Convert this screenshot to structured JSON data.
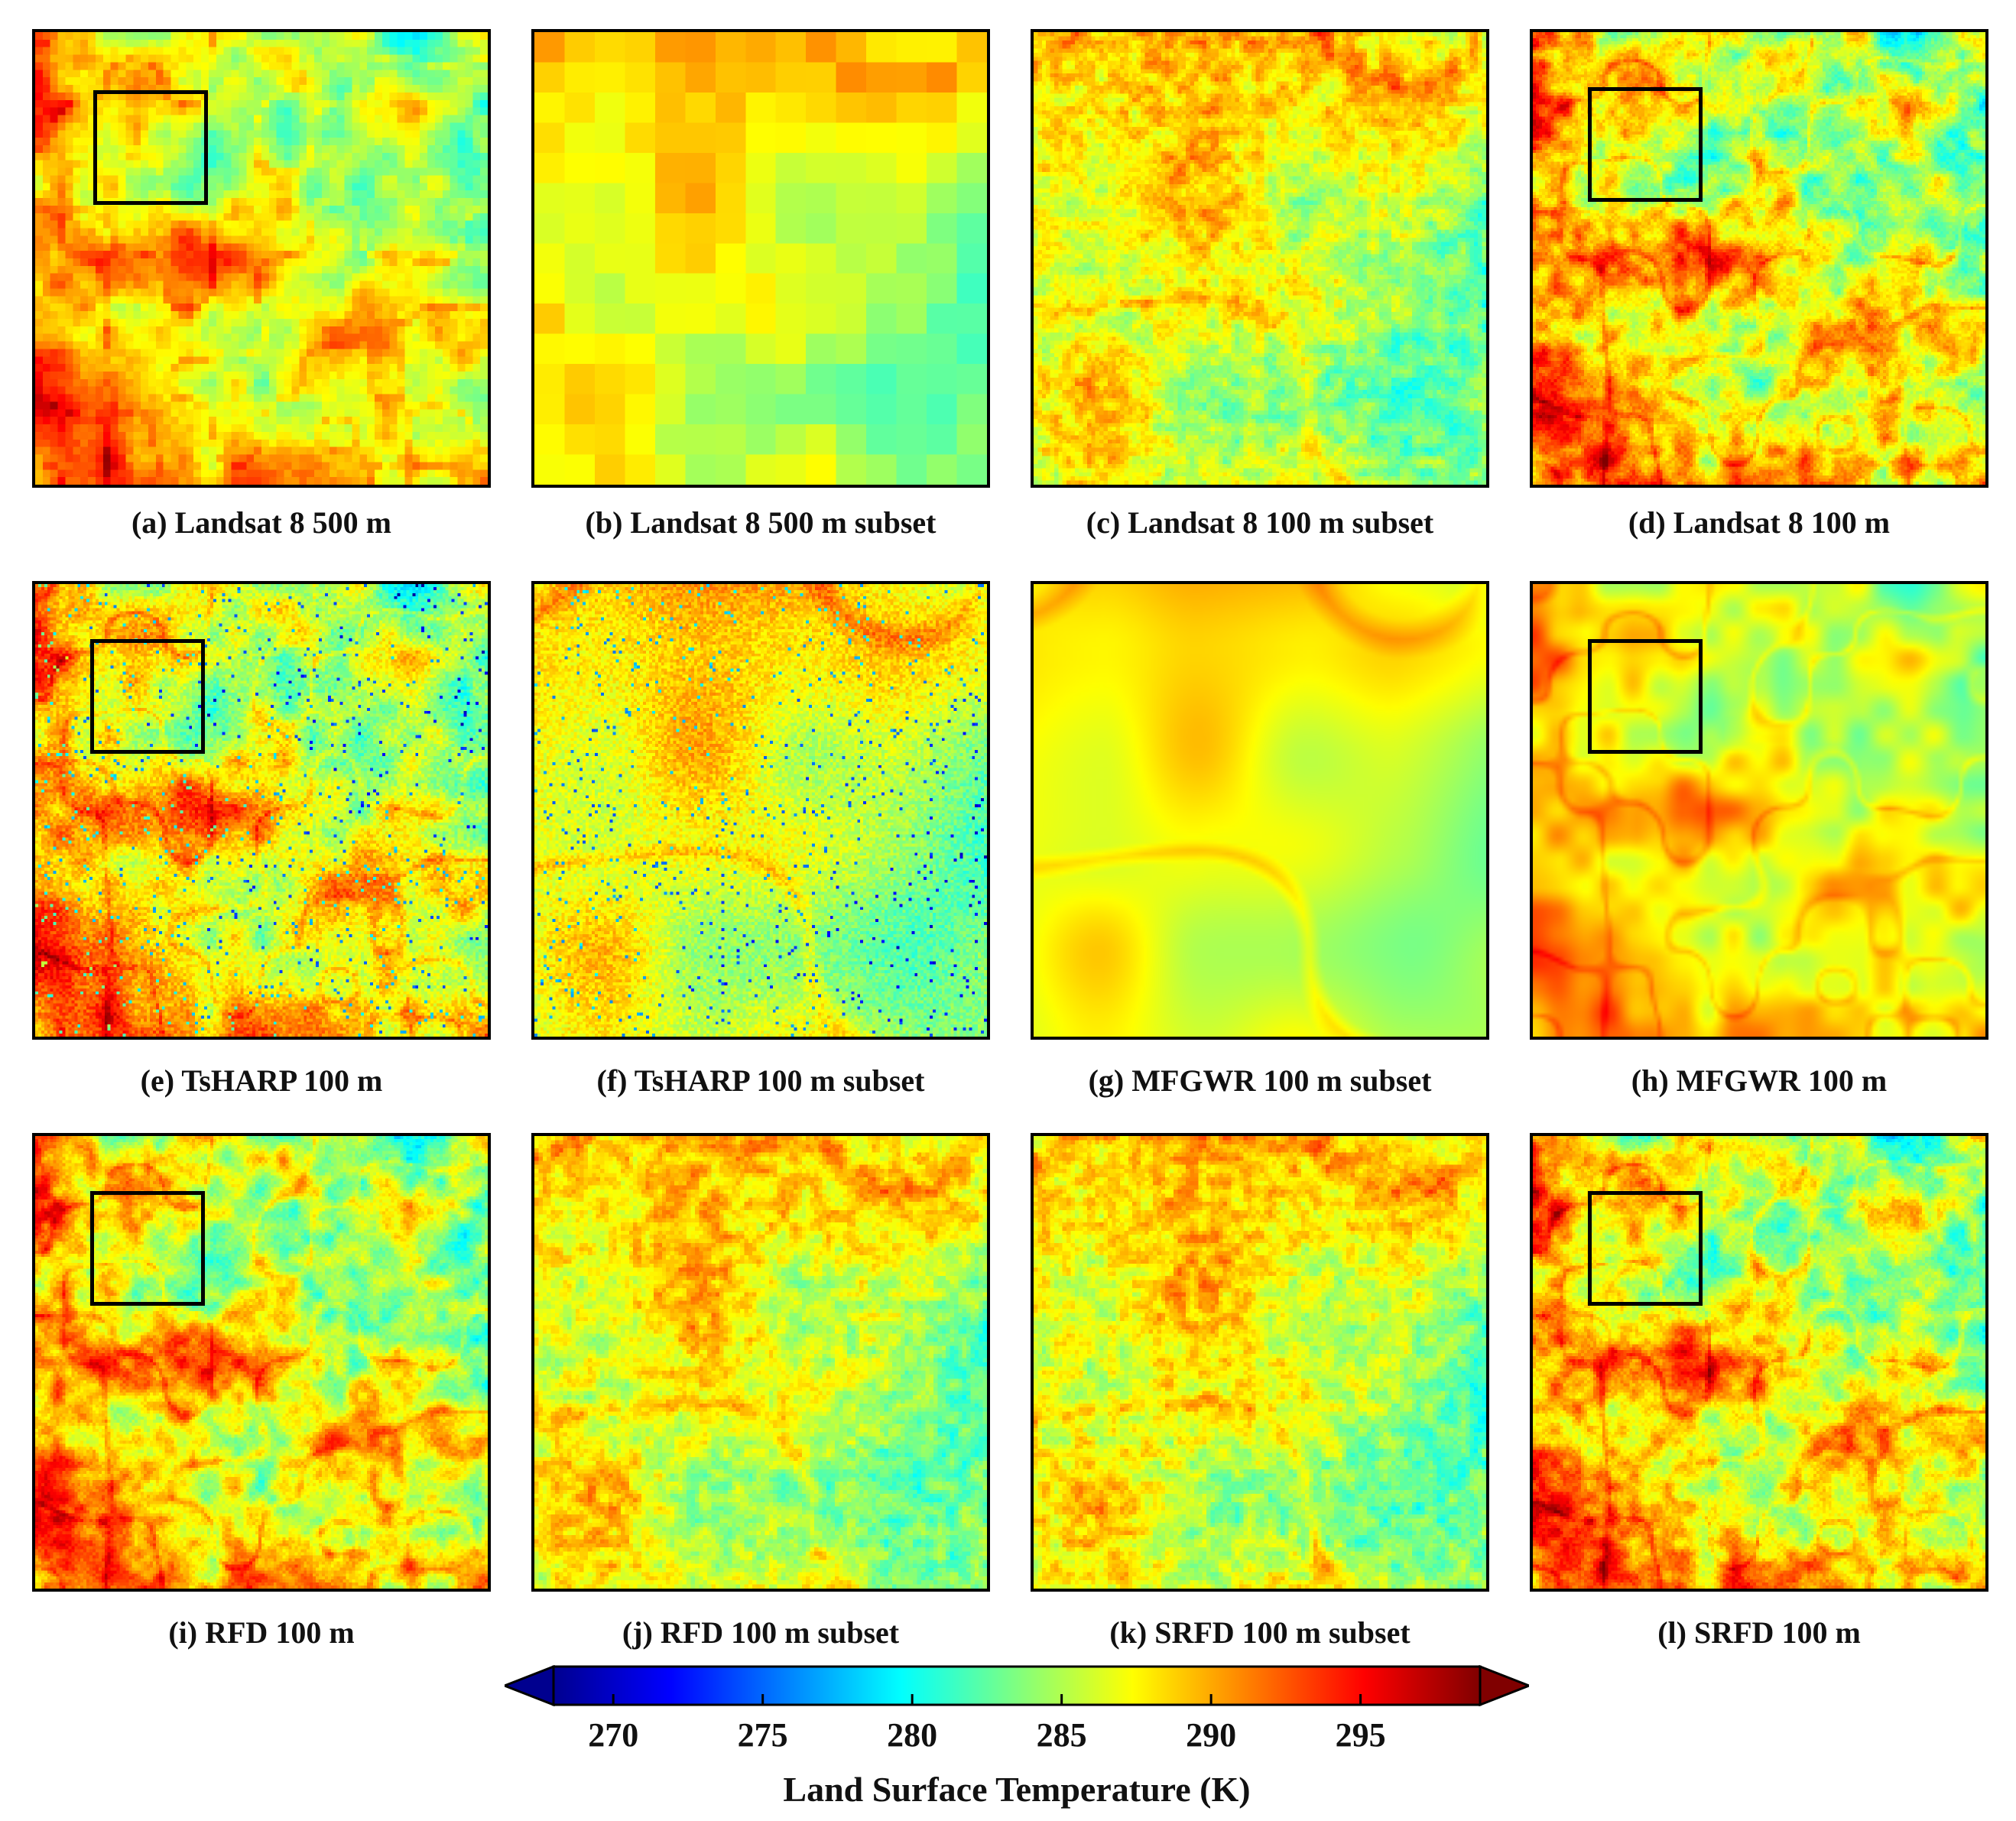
{
  "figure": {
    "panels": [
      {
        "id": "a",
        "caption": "(a) Landsat 8 500 m",
        "style": "blocky-full",
        "seed": 11,
        "roi": true
      },
      {
        "id": "b",
        "caption": "(b) Landsat 8 500 m subset",
        "style": "blocky-subset",
        "seed": 12,
        "roi": false
      },
      {
        "id": "c",
        "caption": "(c) Landsat 8 100 m subset",
        "style": "fine-subset",
        "seed": 13,
        "roi": false
      },
      {
        "id": "d",
        "caption": "(d) Landsat 8 100 m",
        "style": "fine-full",
        "seed": 14,
        "roi": true
      },
      {
        "id": "e",
        "caption": "(e) TsHARP 100 m",
        "style": "noisy-full",
        "seed": 15,
        "roi": true
      },
      {
        "id": "f",
        "caption": "(f) TsHARP 100 m subset",
        "style": "noisy-subset",
        "seed": 16,
        "roi": false
      },
      {
        "id": "g",
        "caption": "(g) MFGWR 100 m subset",
        "style": "smooth-subset",
        "seed": 17,
        "roi": false
      },
      {
        "id": "h",
        "caption": "(h) MFGWR 100 m",
        "style": "smooth-full",
        "seed": 18,
        "roi": true
      },
      {
        "id": "i",
        "caption": "(i) RFD 100 m",
        "style": "fine-full",
        "seed": 19,
        "roi": true
      },
      {
        "id": "j",
        "caption": "(j) RFD 100 m subset",
        "style": "fine-subset",
        "seed": 20,
        "roi": false
      },
      {
        "id": "k",
        "caption": "(k) SRFD 100 m subset",
        "style": "fine-subset",
        "seed": 21,
        "roi": false
      },
      {
        "id": "l",
        "caption": "(l) SRFD 100 m",
        "style": "fine-full",
        "seed": 22,
        "roi": true
      }
    ],
    "colorbar": {
      "title": "Land Surface Temperature (K)",
      "min": 268,
      "max": 299,
      "ticks": [
        270,
        275,
        280,
        285,
        290,
        295
      ],
      "colormap": "jet",
      "extend": "both"
    }
  }
}
